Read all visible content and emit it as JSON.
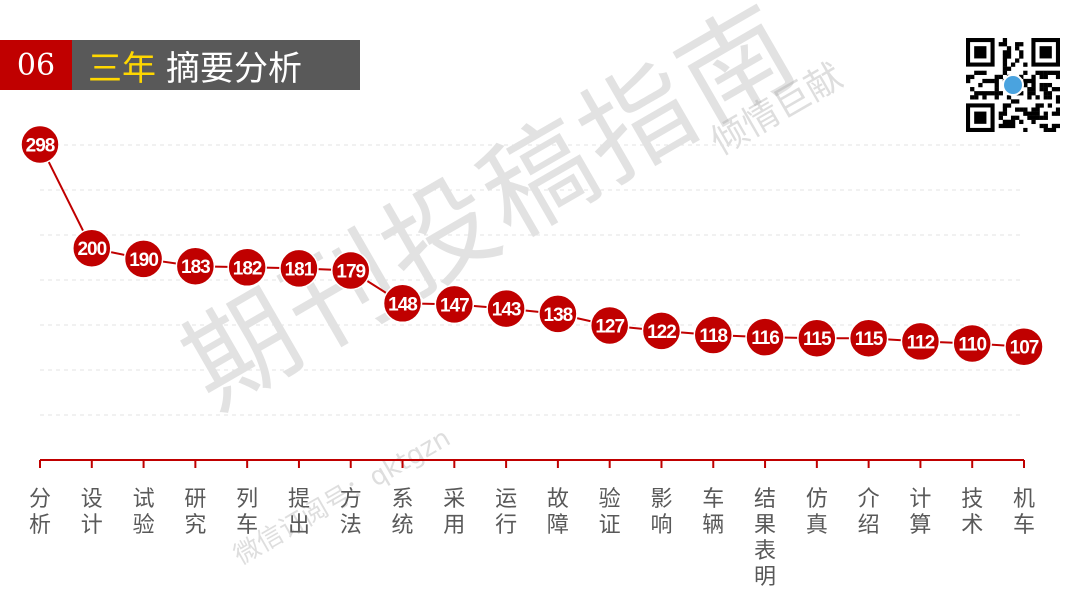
{
  "header": {
    "number": "06",
    "title_highlight": "三年",
    "title_rest": "摘要分析"
  },
  "watermark": {
    "main": "期刊投稿指南",
    "small": "倾情巨献",
    "sub": "微信订阅号：qktgzn"
  },
  "icons": {
    "qr": "qr-code-icon"
  },
  "colors": {
    "accent": "#c00000",
    "header_dark": "#595959",
    "highlight": "#ffd700"
  },
  "chart_data": {
    "type": "line",
    "categories": [
      "分析",
      "设计",
      "试验",
      "研究",
      "列车",
      "提出",
      "方法",
      "系统",
      "采用",
      "运行",
      "故障",
      "验证",
      "影响",
      "车辆",
      "结果表明",
      "仿真",
      "介绍",
      "计算",
      "技术",
      "机车"
    ],
    "values": [
      298,
      200,
      190,
      183,
      182,
      181,
      179,
      148,
      147,
      143,
      138,
      127,
      122,
      118,
      116,
      115,
      115,
      112,
      110,
      107
    ],
    "ylim": [
      0,
      340
    ],
    "grid": true,
    "data_labels": true
  }
}
